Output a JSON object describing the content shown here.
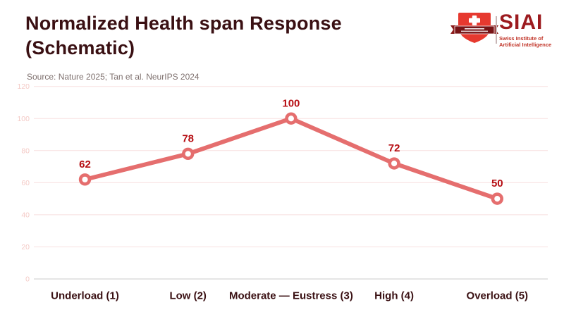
{
  "header": {
    "title_line1": "Normalized Health span Response",
    "title_line2": "(Schematic)",
    "title_color": "#3a1013",
    "source": "Source: Nature 2025; Tan et al. NeurIPS 2024",
    "source_color": "#7e706e"
  },
  "logo": {
    "name": "SIAI",
    "tagline_line1": "Swiss Institute of",
    "tagline_line2": "Artificial Intelligence",
    "shield_red": "#e6392f",
    "banner_red": "#771416",
    "ribbon_tab_red": "#8c1a1a",
    "cross_color": "#ffffff",
    "name_color": "#9c1b1f",
    "tagline_color": "#c13327",
    "divider_color": "#c8b6b6"
  },
  "chart_data": {
    "type": "line",
    "title": "Normalized Health span Response (Schematic)",
    "source_note": "Source: Nature 2025; Tan et al. NeurIPS 2024",
    "categories": [
      "Underload (1)",
      "Low (2)",
      "Moderate — Eustress (3)",
      "High (4)",
      "Overload (5)"
    ],
    "values": [
      62,
      78,
      100,
      72,
      50
    ],
    "xlabel": "",
    "ylabel": "",
    "ylim": [
      0,
      120
    ],
    "yticks": [
      0,
      20,
      40,
      60,
      80,
      100,
      120
    ],
    "grid": true,
    "legend": false,
    "show_data_labels": true,
    "colors": {
      "line": "#e56e6e",
      "marker_fill": "#ffffff",
      "marker_ring": "#e56e6e",
      "data_label": "#b60d12",
      "category_label": "#3a1013",
      "gridline": "#f8dfdf",
      "axis_line": "#d5d5d5",
      "ytick_label": "#f4c9c5"
    }
  }
}
